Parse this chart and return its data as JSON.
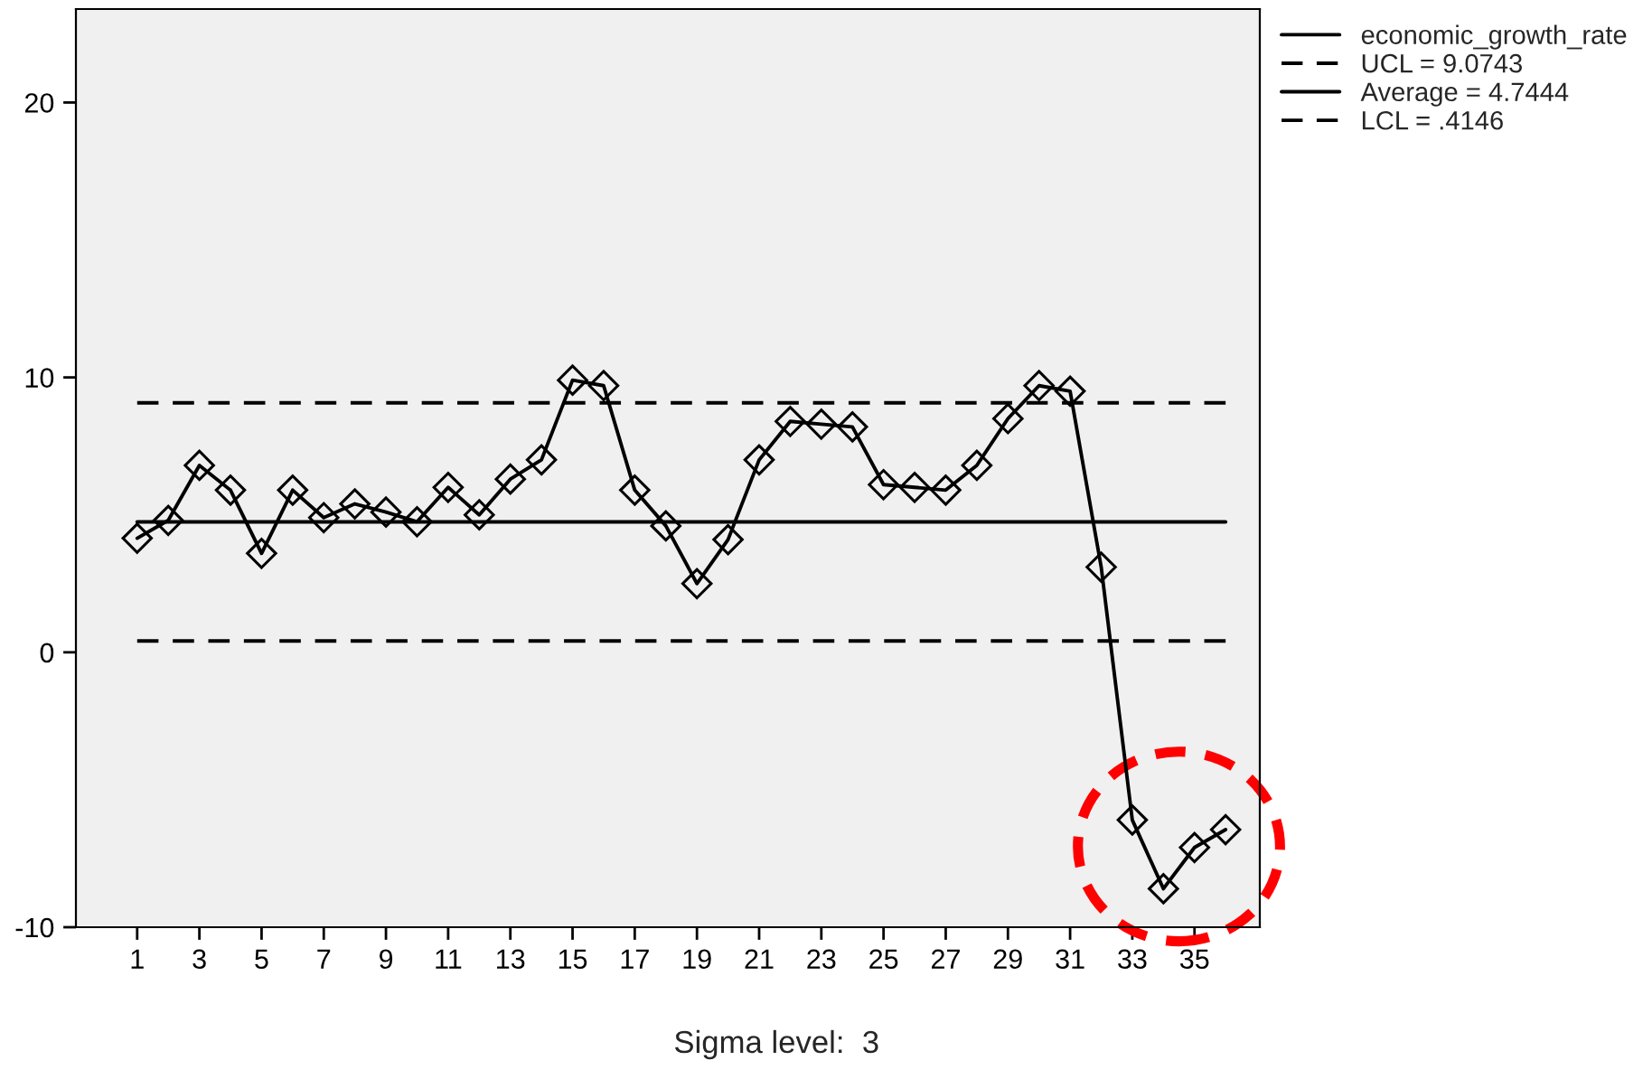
{
  "chart_data": {
    "type": "line",
    "categories": [
      "1",
      null,
      "3",
      null,
      "5",
      null,
      "7",
      null,
      "9",
      null,
      "11",
      null,
      "13",
      null,
      "15",
      null,
      "17",
      null,
      "19",
      null,
      "21",
      null,
      "23",
      null,
      "25",
      null,
      "27",
      null,
      "29",
      null,
      "31",
      null,
      "33",
      null,
      "35",
      null
    ],
    "series": [
      {
        "name": "economic_growth_rate",
        "color": "#000000",
        "marker": "diamond",
        "line_style": "solid",
        "values": [
          4.15,
          4.8,
          6.8,
          5.9,
          3.6,
          5.9,
          4.9,
          5.4,
          5.1,
          4.75,
          6.0,
          5.0,
          6.3,
          7.0,
          9.9,
          9.7,
          5.9,
          4.6,
          2.5,
          4.1,
          7.0,
          8.4,
          8.3,
          8.2,
          6.1,
          6.0,
          5.9,
          6.8,
          8.5,
          9.7,
          9.5,
          3.1,
          -6.1,
          -8.6,
          -7.1,
          -6.45
        ]
      },
      {
        "name": "UCL = 9.0743",
        "color": "#000000",
        "marker": "none",
        "line_style": "dashed",
        "values": [
          9.0743,
          9.0743,
          9.0743,
          9.0743,
          9.0743,
          9.0743,
          9.0743,
          9.0743,
          9.0743,
          9.0743,
          9.0743,
          9.0743,
          9.0743,
          9.0743,
          9.0743,
          9.0743,
          9.0743,
          9.0743,
          9.0743,
          9.0743,
          9.0743,
          9.0743,
          9.0743,
          9.0743,
          9.0743,
          9.0743,
          9.0743,
          9.0743,
          9.0743,
          9.0743,
          9.0743,
          9.0743,
          9.0743,
          9.0743,
          9.0743,
          9.0743
        ]
      },
      {
        "name": "Average = 4.7444",
        "color": "#000000",
        "marker": "none",
        "line_style": "solid",
        "values": [
          4.7444,
          4.7444,
          4.7444,
          4.7444,
          4.7444,
          4.7444,
          4.7444,
          4.7444,
          4.7444,
          4.7444,
          4.7444,
          4.7444,
          4.7444,
          4.7444,
          4.7444,
          4.7444,
          4.7444,
          4.7444,
          4.7444,
          4.7444,
          4.7444,
          4.7444,
          4.7444,
          4.7444,
          4.7444,
          4.7444,
          4.7444,
          4.7444,
          4.7444,
          4.7444,
          4.7444,
          4.7444,
          4.7444,
          4.7444,
          4.7444,
          4.7444
        ]
      },
      {
        "name": "LCL = .4146",
        "color": "#000000",
        "marker": "none",
        "line_style": "dashed",
        "values": [
          0.4146,
          0.4146,
          0.4146,
          0.4146,
          0.4146,
          0.4146,
          0.4146,
          0.4146,
          0.4146,
          0.4146,
          0.4146,
          0.4146,
          0.4146,
          0.4146,
          0.4146,
          0.4146,
          0.4146,
          0.4146,
          0.4146,
          0.4146,
          0.4146,
          0.4146,
          0.4146,
          0.4146,
          0.4146,
          0.4146,
          0.4146,
          0.4146,
          0.4146,
          0.4146,
          0.4146,
          0.4146,
          0.4146,
          0.4146,
          0.4146,
          0.4146
        ]
      }
    ],
    "ylim": [
      -10,
      23.4
    ],
    "yticks": [
      -10,
      0,
      10,
      20
    ],
    "grid": false,
    "legend": "top right",
    "annotations": [
      "Sigma level:  3"
    ]
  }
}
